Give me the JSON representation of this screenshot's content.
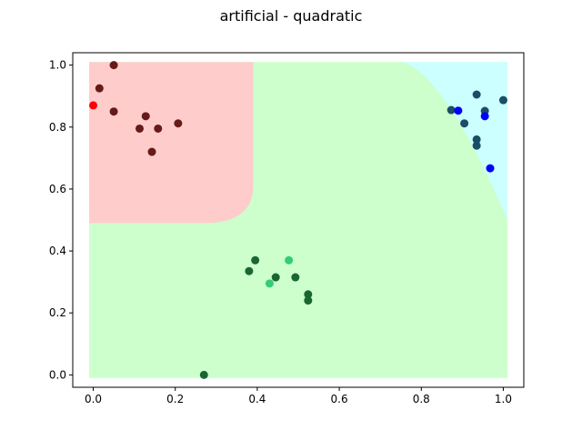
{
  "chart_data": {
    "type": "scatter",
    "title": "artificial - quadratic",
    "xlabel": "",
    "ylabel": "",
    "xlim": [
      -0.05,
      1.05
    ],
    "ylim": [
      -0.04,
      1.04
    ],
    "xticks": [
      0.0,
      0.2,
      0.4,
      0.6,
      0.8,
      1.0
    ],
    "yticks": [
      0.0,
      0.2,
      0.4,
      0.6,
      0.8,
      1.0
    ],
    "xtick_labels": [
      "0.0",
      "0.2",
      "0.4",
      "0.6",
      "0.8",
      "1.0"
    ],
    "ytick_labels": [
      "0.0",
      "0.2",
      "0.4",
      "0.6",
      "0.8",
      "1.0"
    ],
    "grid": false,
    "regions": [
      {
        "class": "red",
        "color": "#ffcccc",
        "x_max": 0.39,
        "y_min": 0.49,
        "corner_radius": 0.12
      },
      {
        "class": "cyan",
        "color": "#ccffff",
        "x_min": 0.75,
        "y_min": 0.5,
        "quadratic_boundary": true
      },
      {
        "class": "green",
        "color": "#ccffcc",
        "background": true
      }
    ],
    "series": [
      {
        "color": "#661a1a",
        "points": [
          [
            0.05,
            1.0
          ],
          [
            0.015,
            0.925
          ],
          [
            0.05,
            0.85
          ],
          [
            0.128,
            0.835
          ],
          [
            0.113,
            0.795
          ],
          [
            0.158,
            0.795
          ],
          [
            0.207,
            0.812
          ],
          [
            0.143,
            0.72
          ]
        ]
      },
      {
        "color": "#ff0000",
        "points": [
          [
            0.0,
            0.87
          ]
        ]
      },
      {
        "color": "#1a4d66",
        "points": [
          [
            0.873,
            0.855
          ],
          [
            0.935,
            0.905
          ],
          [
            0.955,
            0.852
          ],
          [
            1.0,
            0.887
          ],
          [
            0.905,
            0.812
          ],
          [
            0.935,
            0.76
          ],
          [
            0.935,
            0.74
          ]
        ]
      },
      {
        "color": "#0000ff",
        "points": [
          [
            0.89,
            0.853
          ],
          [
            0.955,
            0.835
          ],
          [
            0.968,
            0.667
          ]
        ]
      },
      {
        "color": "#1a6633",
        "points": [
          [
            0.395,
            0.37
          ],
          [
            0.38,
            0.335
          ],
          [
            0.445,
            0.315
          ],
          [
            0.493,
            0.315
          ],
          [
            0.524,
            0.26
          ],
          [
            0.524,
            0.24
          ],
          [
            0.27,
            0.0
          ]
        ]
      },
      {
        "color": "#33cc77",
        "points": [
          [
            0.477,
            0.37
          ],
          [
            0.43,
            0.295
          ]
        ]
      }
    ]
  }
}
